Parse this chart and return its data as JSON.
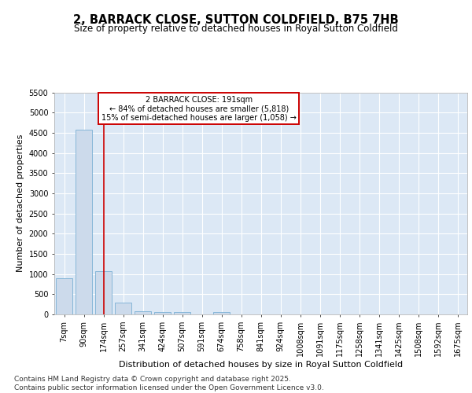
{
  "title": "2, BARRACK CLOSE, SUTTON COLDFIELD, B75 7HB",
  "subtitle": "Size of property relative to detached houses in Royal Sutton Coldfield",
  "xlabel": "Distribution of detached houses by size in Royal Sutton Coldfield",
  "ylabel": "Number of detached properties",
  "bar_color": "#ccdaeb",
  "bar_edge_color": "#7aafd4",
  "categories": [
    "7sqm",
    "90sqm",
    "174sqm",
    "257sqm",
    "341sqm",
    "424sqm",
    "507sqm",
    "591sqm",
    "674sqm",
    "758sqm",
    "841sqm",
    "924sqm",
    "1008sqm",
    "1091sqm",
    "1175sqm",
    "1258sqm",
    "1341sqm",
    "1425sqm",
    "1508sqm",
    "1592sqm",
    "1675sqm"
  ],
  "values": [
    900,
    4580,
    1080,
    300,
    80,
    65,
    50,
    0,
    50,
    0,
    0,
    0,
    0,
    0,
    0,
    0,
    0,
    0,
    0,
    0,
    0
  ],
  "ylim": [
    0,
    5500
  ],
  "yticks": [
    0,
    500,
    1000,
    1500,
    2000,
    2500,
    3000,
    3500,
    4000,
    4500,
    5000,
    5500
  ],
  "property_line_x": 2.0,
  "annotation_line1": "2 BARRACK CLOSE: 191sqm",
  "annotation_line2": "← 84% of detached houses are smaller (5,818)",
  "annotation_line3": "15% of semi-detached houses are larger (1,058) →",
  "annotation_box_color": "#ffffff",
  "annotation_box_edge": "#cc0000",
  "red_line_color": "#cc0000",
  "plot_bg_color": "#dce8f5",
  "fig_bg_color": "#ffffff",
  "footer_text": "Contains HM Land Registry data © Crown copyright and database right 2025.\nContains public sector information licensed under the Open Government Licence v3.0.",
  "grid_color": "#ffffff",
  "title_fontsize": 10.5,
  "subtitle_fontsize": 8.5,
  "ylabel_fontsize": 8,
  "xlabel_fontsize": 8,
  "tick_fontsize": 7,
  "annotation_fontsize": 7,
  "footer_fontsize": 6.5
}
